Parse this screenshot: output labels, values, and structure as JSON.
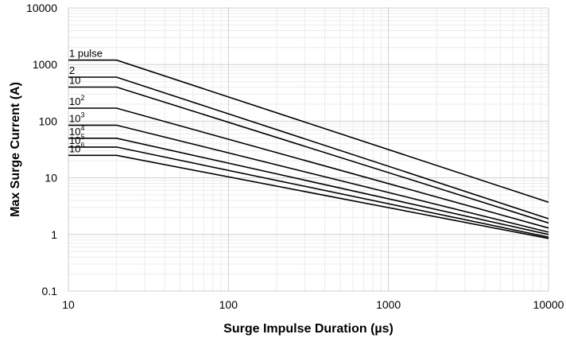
{
  "chart_data": {
    "type": "line",
    "xlabel": "Surge Impulse Duration (µs)",
    "ylabel": "Max Surge Current (A)",
    "xscale": "log",
    "yscale": "log",
    "xlim": [
      10,
      10000
    ],
    "ylim": [
      0.1,
      10000
    ],
    "x_ticks": [
      "10",
      "100",
      "1000",
      "10000"
    ],
    "y_ticks": [
      "0.1",
      "1",
      "10",
      "100",
      "1000",
      "10000"
    ],
    "grid": true,
    "line_color": "#000000",
    "series": [
      {
        "name": "1 pulse",
        "base": "1 pulse",
        "exp": "",
        "x": [
          10,
          20,
          10000
        ],
        "y": [
          1200,
          1200,
          3.7
        ]
      },
      {
        "name": "2",
        "base": "2",
        "exp": "",
        "x": [
          10,
          20,
          10000
        ],
        "y": [
          600,
          600,
          1.9
        ]
      },
      {
        "name": "10",
        "base": "10",
        "exp": "",
        "x": [
          10,
          20,
          10000
        ],
        "y": [
          400,
          400,
          1.6
        ]
      },
      {
        "name": "10^2",
        "base": "10",
        "exp": "2",
        "x": [
          10,
          20,
          10000
        ],
        "y": [
          170,
          170,
          1.3
        ]
      },
      {
        "name": "10^3",
        "base": "10",
        "exp": "3",
        "x": [
          10,
          20,
          10000
        ],
        "y": [
          85,
          85,
          1.1
        ]
      },
      {
        "name": "10^4",
        "base": "10",
        "exp": "4",
        "x": [
          10,
          20,
          10000
        ],
        "y": [
          50,
          50,
          1.0
        ]
      },
      {
        "name": "10^5",
        "base": "10",
        "exp": "5",
        "x": [
          10,
          20,
          10000
        ],
        "y": [
          35,
          35,
          0.9
        ]
      },
      {
        "name": "10^6",
        "base": "10",
        "exp": "6",
        "x": [
          10,
          20,
          10000
        ],
        "y": [
          25,
          25,
          0.85
        ]
      }
    ]
  }
}
